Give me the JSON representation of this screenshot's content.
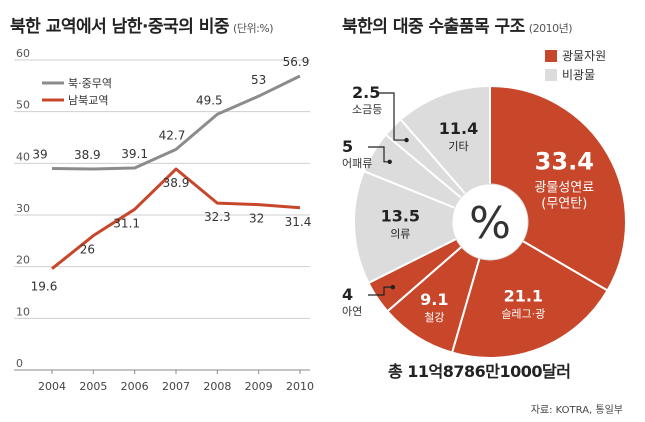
{
  "line_panel": {
    "title": "북한 교역에서 남한·중국의 비중",
    "unit": "(단위:%)"
  },
  "pie_panel": {
    "title": "북한의 대중 수출품목 구조",
    "year": "(2010년)",
    "center_symbol": "%",
    "total": "총 11억8786만1000달러"
  },
  "source": "자료: KOTRA, 통일부",
  "chart_data": [
    {
      "type": "line",
      "title": "북한 교역에서 남한·중국의 비중",
      "unit": "(단위:%)",
      "x": [
        "2004",
        "2005",
        "2006",
        "2007",
        "2008",
        "2009",
        "2010"
      ],
      "ylim": [
        0,
        60
      ],
      "yticks": [
        "0",
        "10",
        "20",
        "30",
        "40",
        "50",
        "60"
      ],
      "grid": true,
      "legend_position": "top-left",
      "series": [
        {
          "name": "북·중무역",
          "color": "#8c8c8c",
          "values": [
            39,
            38.9,
            39.1,
            42.7,
            49.5,
            53,
            56.9
          ],
          "labels": [
            "39",
            "38.9",
            "39.1",
            "42.7",
            "49.5",
            "53",
            "56.9"
          ]
        },
        {
          "name": "남북교역",
          "color": "#c8472b",
          "values": [
            19.6,
            26,
            31.1,
            38.9,
            32.3,
            32,
            31.4
          ],
          "labels": [
            "19.6",
            "26",
            "31.1",
            "38.9",
            "32.3",
            "32",
            "31.4"
          ]
        }
      ]
    },
    {
      "type": "pie",
      "title": "북한의 대중 수출품목 구조",
      "subtitle": "(2010년)",
      "legend_position": "top-right",
      "legend": [
        {
          "name": "광물자원",
          "color": "#c8472b"
        },
        {
          "name": "비광물",
          "color": "#dcdcdc"
        }
      ],
      "slices": [
        {
          "label": "광물성연료",
          "sublabel": "(무연탄)",
          "value": 33.4,
          "value_text": "33.4",
          "group": "광물자원"
        },
        {
          "label": "슬레그·광",
          "value": 21.1,
          "value_text": "21.1",
          "group": "광물자원"
        },
        {
          "label": "철강",
          "value": 9.1,
          "value_text": "9.1",
          "group": "광물자원"
        },
        {
          "label": "아연",
          "value": 4,
          "value_text": "4",
          "group": "광물자원"
        },
        {
          "label": "의류",
          "value": 13.5,
          "value_text": "13.5",
          "group": "비광물"
        },
        {
          "label": "어패류",
          "value": 5,
          "value_text": "5",
          "group": "비광물"
        },
        {
          "label": "소금등",
          "value": 2.5,
          "value_text": "2.5",
          "group": "비광물"
        },
        {
          "label": "기타",
          "value": 11.4,
          "value_text": "11.4",
          "group": "비광물"
        }
      ],
      "center_symbol": "%",
      "total": "총 11억8786만1000달러"
    }
  ]
}
